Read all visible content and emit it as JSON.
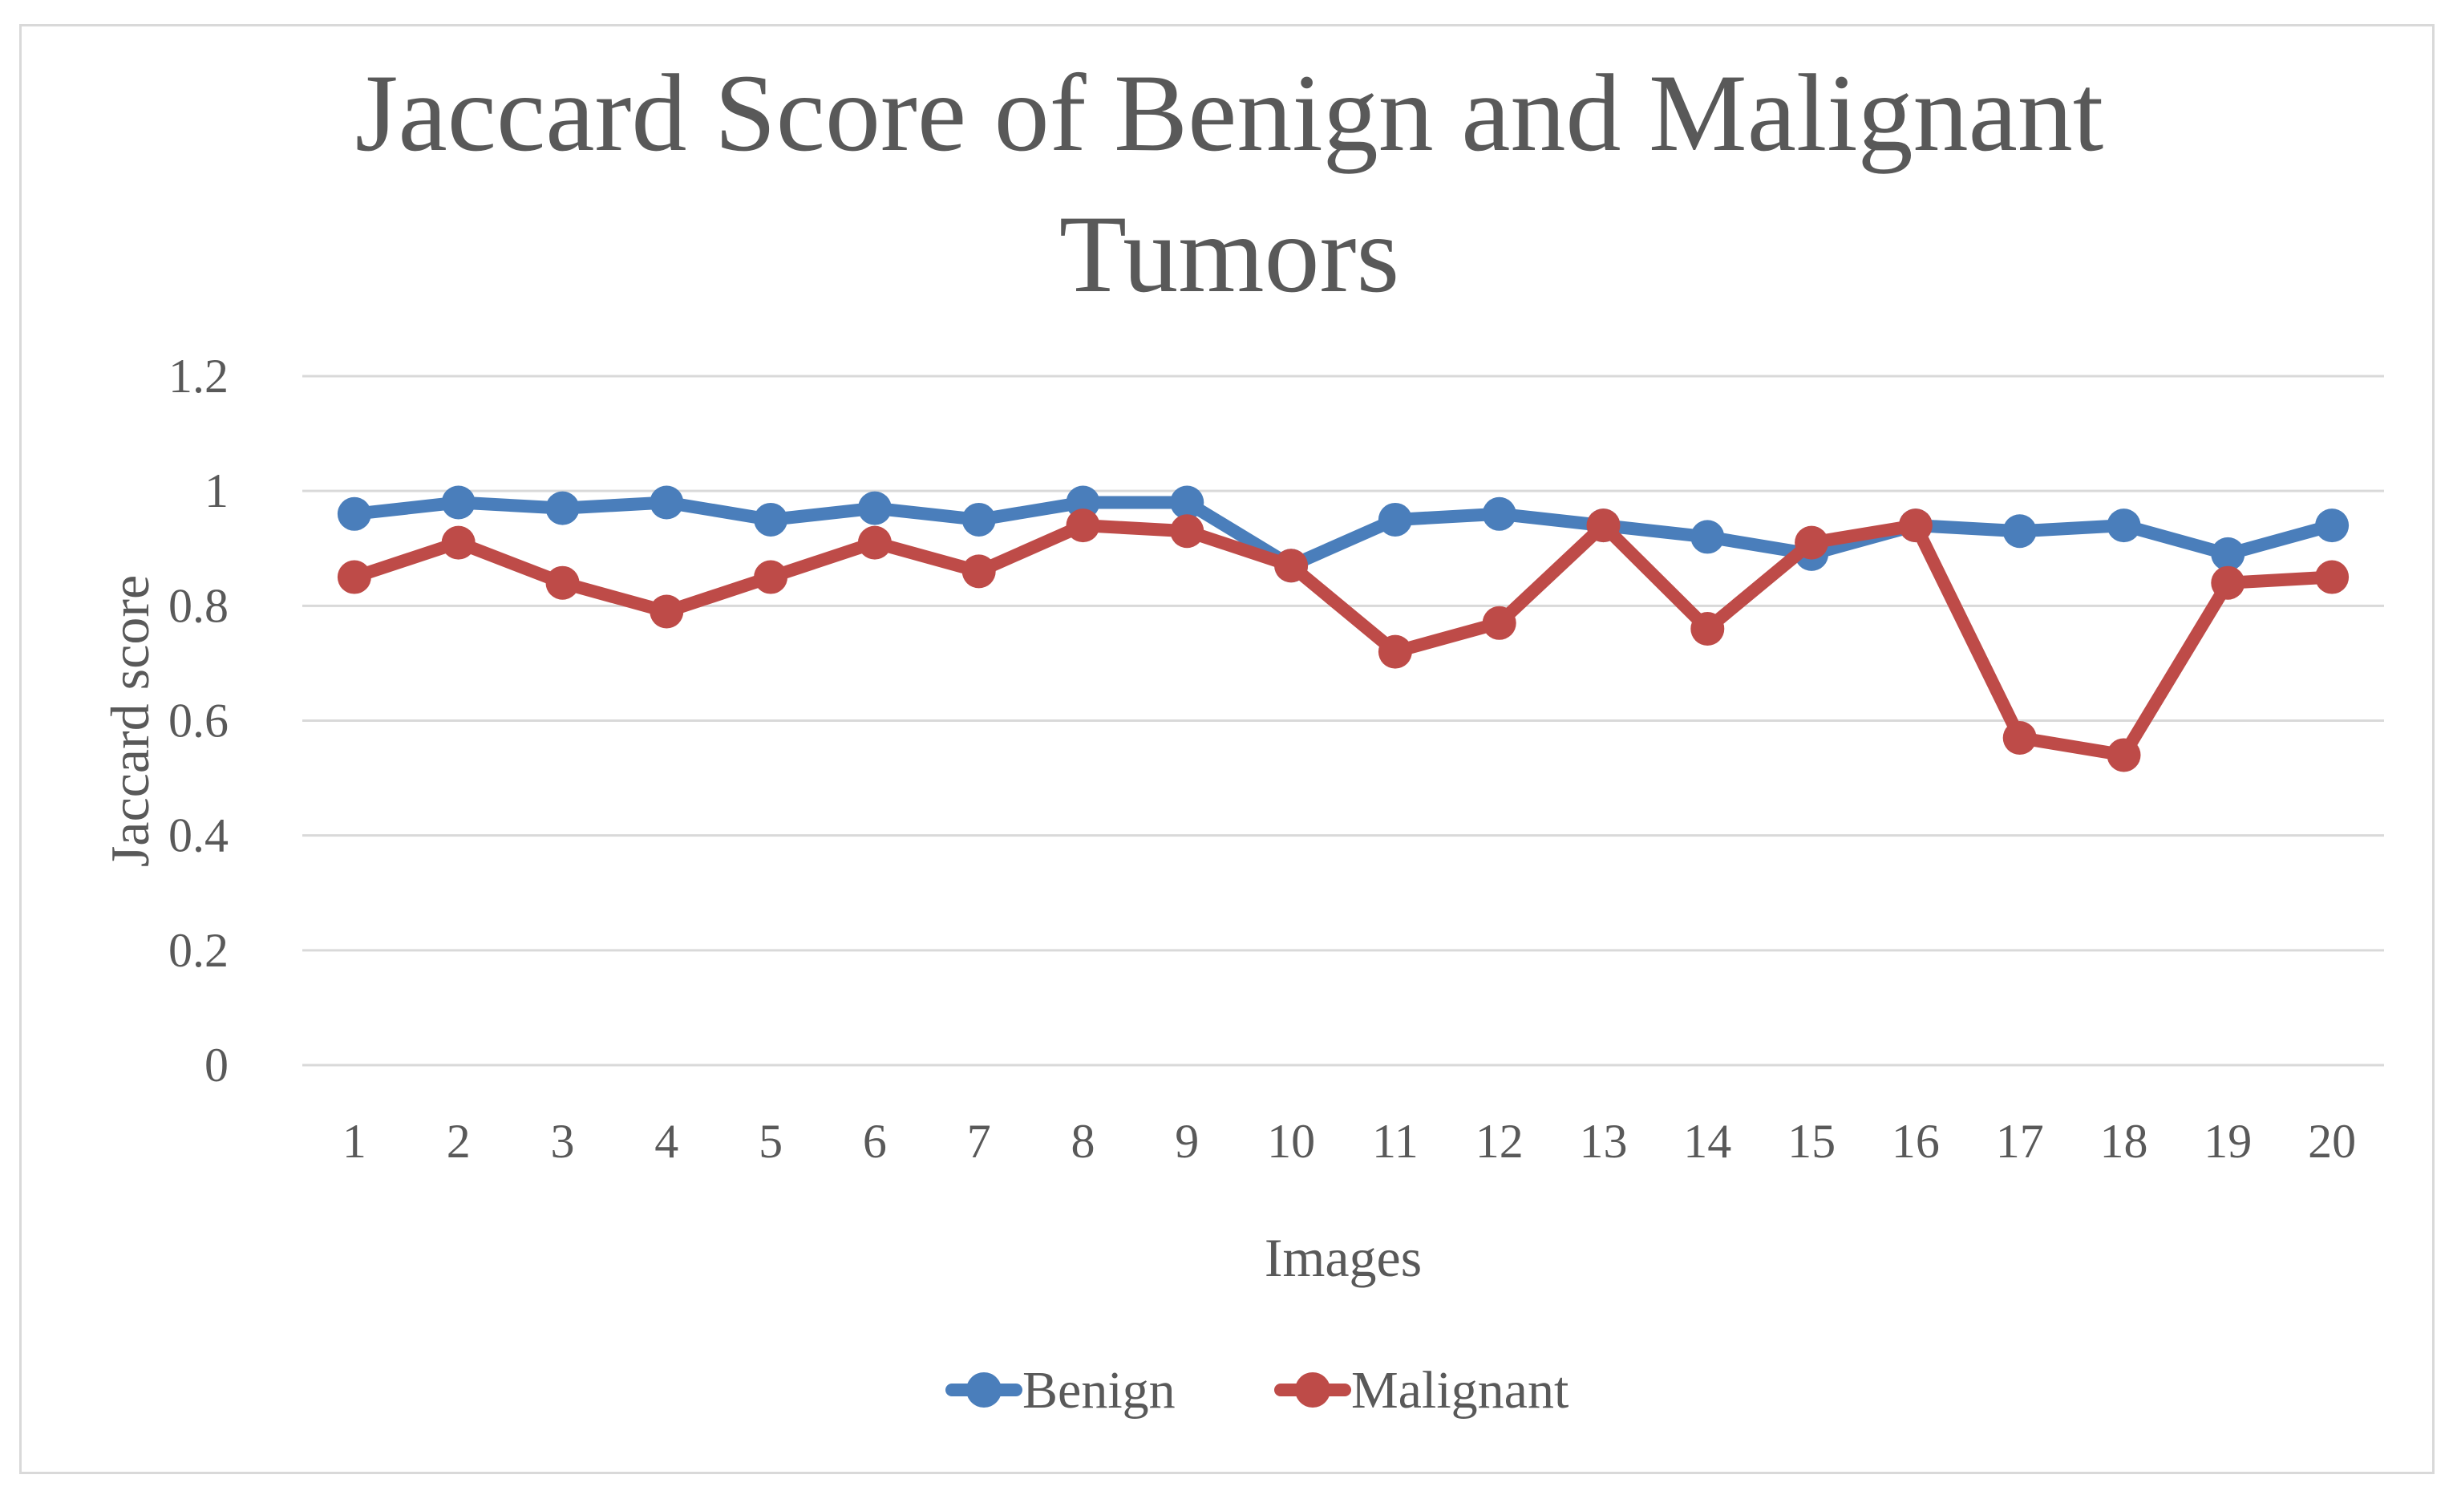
{
  "chart_data": {
    "type": "line",
    "title": "Jaccard Score of Benign and Malignant Tumors",
    "title_lines": [
      "Jaccard Score of Benign and Malignant",
      "Tumors"
    ],
    "xlabel": "Images",
    "ylabel": "Jaccard score",
    "ylim": [
      0,
      1.2
    ],
    "yticks": [
      "0",
      "0.2",
      "0.4",
      "0.6",
      "0.8",
      "1",
      "1.2"
    ],
    "ytick_values": [
      0,
      0.2,
      0.4,
      0.6,
      0.8,
      1.0,
      1.2
    ],
    "categories": [
      "1",
      "2",
      "3",
      "4",
      "5",
      "6",
      "7",
      "8",
      "9",
      "10",
      "11",
      "12",
      "13",
      "14",
      "15",
      "16",
      "17",
      "18",
      "19",
      "20"
    ],
    "grid": "horizontal",
    "legend_position": "bottom",
    "series": [
      {
        "name": "Benign",
        "color": "#4a7ebb",
        "values": [
          0.96,
          0.98,
          0.97,
          0.98,
          0.95,
          0.97,
          0.95,
          0.98,
          0.98,
          0.87,
          0.95,
          0.96,
          0.94,
          0.92,
          0.89,
          0.94,
          0.93,
          0.94,
          0.89,
          0.94
        ]
      },
      {
        "name": "Malignant",
        "color": "#be4b48",
        "values": [
          0.85,
          0.91,
          0.84,
          0.79,
          0.85,
          0.91,
          0.86,
          0.94,
          0.93,
          0.87,
          0.72,
          0.77,
          0.94,
          0.76,
          0.91,
          0.94,
          0.57,
          0.54,
          0.84,
          0.85
        ]
      }
    ]
  }
}
